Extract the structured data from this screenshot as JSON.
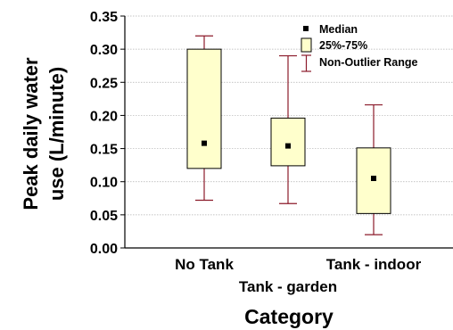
{
  "chart_data": {
    "type": "boxplot",
    "title": "",
    "xlabel": "Category",
    "ylabel": [
      "Peak daily water",
      "use (L/minute)"
    ],
    "ylim": [
      0,
      0.35
    ],
    "yticks": [
      "0.00",
      "0.05",
      "0.10",
      "0.15",
      "0.20",
      "0.25",
      "0.30",
      "0.35"
    ],
    "grid": "horizontal",
    "legend_position": "top-right",
    "legend": {
      "median": "Median",
      "box": "25%-75%",
      "whisker": "Non-Outlier Range"
    },
    "categories": [
      "No Tank",
      "Tank - garden",
      "Tank - indoor"
    ],
    "boxes": [
      {
        "category": "No Tank",
        "whisker_low": 0.072,
        "q1": 0.12,
        "median": 0.158,
        "q3": 0.3,
        "whisker_high": 0.32
      },
      {
        "category": "Tank - garden",
        "whisker_low": 0.067,
        "q1": 0.124,
        "median": 0.154,
        "q3": 0.196,
        "whisker_high": 0.29
      },
      {
        "category": "Tank - indoor",
        "whisker_low": 0.02,
        "q1": 0.052,
        "median": 0.105,
        "q3": 0.151,
        "whisker_high": 0.216
      }
    ],
    "colors": {
      "box_fill": "#ffffcc",
      "box_stroke": "#000000",
      "whisker": "#8b1a2a",
      "median": "#000000",
      "grid": "#b0b0b0"
    }
  }
}
